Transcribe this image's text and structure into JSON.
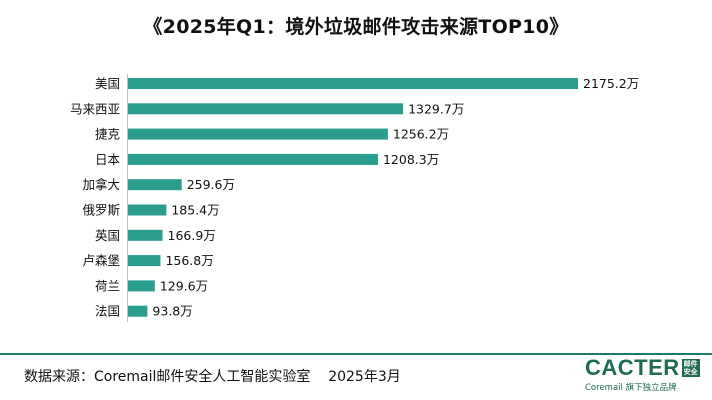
{
  "title": "《2025年Q1：境外垃圾邮件攻击来源TOP10》",
  "footer": "数据来源：Coremail邮件安全人工智能实验室    2025年3月",
  "logo": {
    "brand": "CACTER",
    "badge_top": "邮件",
    "badge_bottom": "安全",
    "sub_brand": "Coremail",
    "sub_text": "旗下独立品牌"
  },
  "colors": {
    "bar": "#2a9d8f",
    "accent": "#1f7a66"
  },
  "chart_data": {
    "type": "bar",
    "orientation": "horizontal",
    "title": "《2025年Q1：境外垃圾邮件攻击来源TOP10》",
    "categories": [
      "美国",
      "马来西亚",
      "捷克",
      "日本",
      "加拿大",
      "俄罗斯",
      "英国",
      "卢森堡",
      "荷兰",
      "法国"
    ],
    "values": [
      2175.2,
      1329.7,
      1256.2,
      1208.3,
      259.6,
      185.4,
      166.9,
      156.8,
      129.6,
      93.8
    ],
    "value_labels": [
      "2175.2万",
      "1329.7万",
      "1256.2万",
      "1208.3万",
      "259.6万",
      "185.4万",
      "166.9万",
      "156.8万",
      "129.6万",
      "93.8万"
    ],
    "unit": "万",
    "xlabel": "",
    "ylabel": "",
    "grid": false,
    "legend": "none"
  }
}
